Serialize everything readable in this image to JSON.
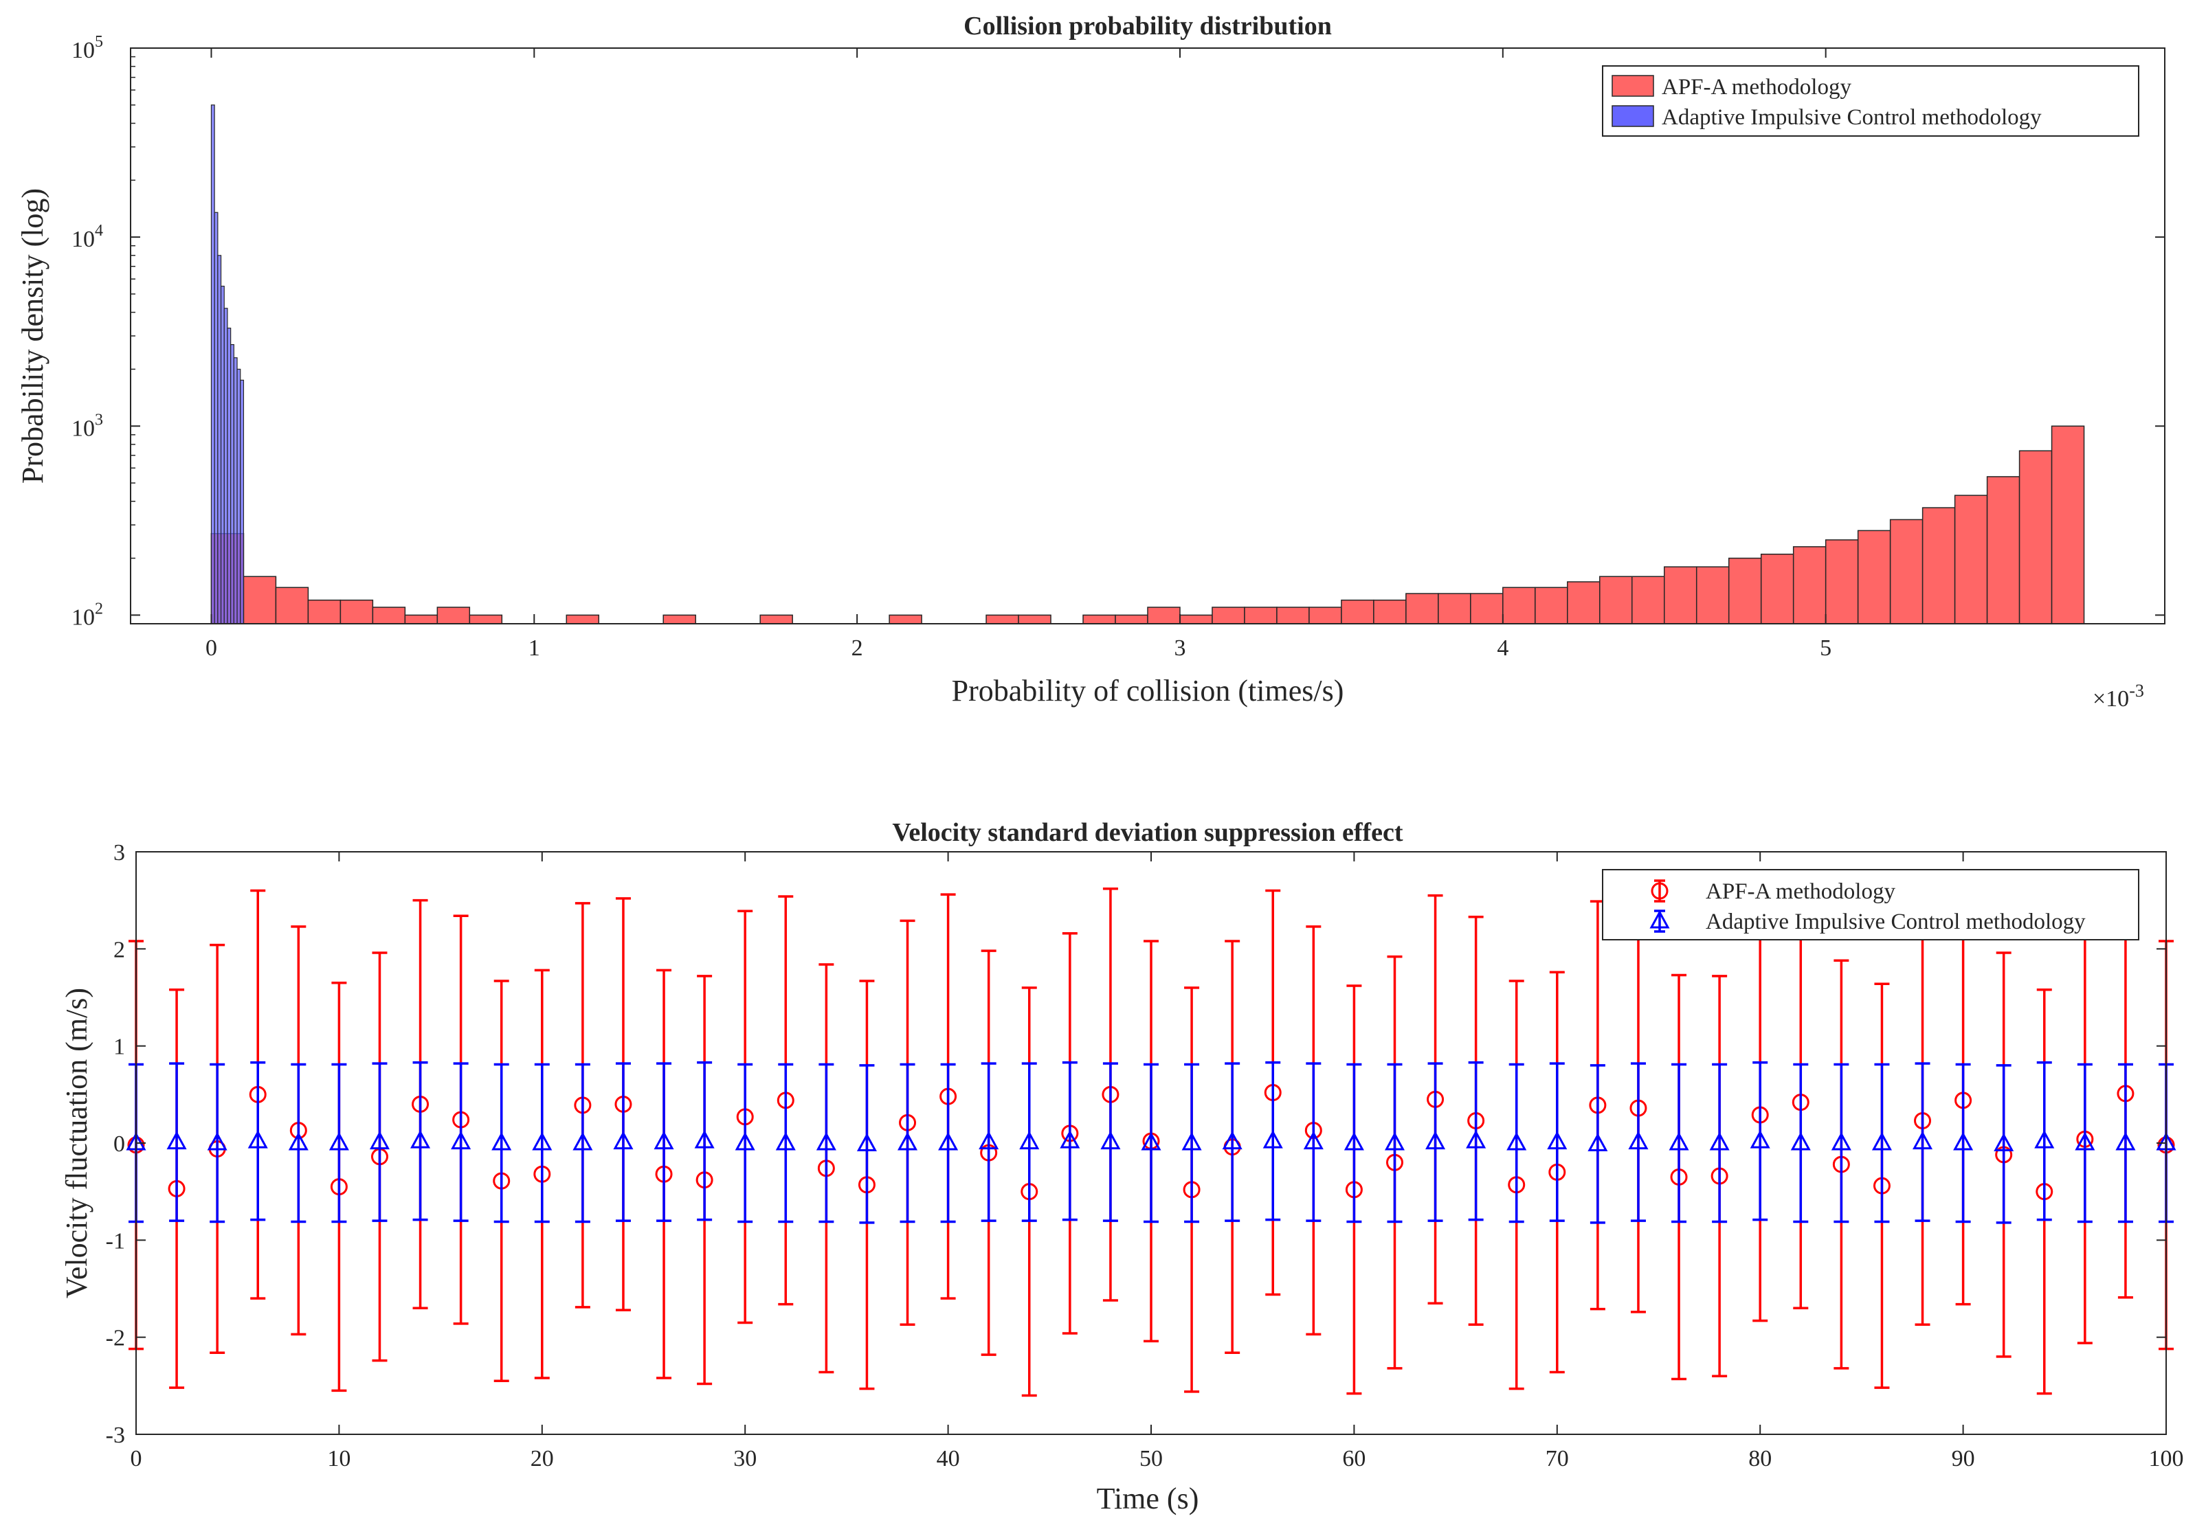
{
  "figure": {
    "charts": [
      {
        "title": "Collision probability distribution",
        "xlabel": "Probability of collision (times/s)",
        "ylabel": "Probability density (log)",
        "x_exponent_label": "×10",
        "x_exponent_value": "-3",
        "y_tick_base": "10",
        "legend": [
          "APF-A methodology",
          "Adaptive Impulsive Control methodology"
        ]
      },
      {
        "title": "Velocity standard deviation suppression effect",
        "xlabel": "Time (s)",
        "ylabel": "Velocity fluctuation (m/s)",
        "legend": [
          "APF-A methodology",
          "Adaptive Impulsive Control methodology"
        ]
      }
    ]
  },
  "chart_data": [
    {
      "type": "bar",
      "title": "Collision probability distribution",
      "xlabel": "Probability of collision (times/s)",
      "ylabel": "Probability density (log)",
      "x_scale_factor": "×10^-3",
      "xlim": [
        -0.00025,
        0.00605
      ],
      "ylim": [
        90,
        100000
      ],
      "yscale": "log",
      "x_ticks": [
        0,
        1,
        2,
        3,
        4,
        5
      ],
      "y_ticks": [
        100,
        1000,
        10000,
        100000
      ],
      "y_tick_exponents": [
        "2",
        "3",
        "4",
        "5"
      ],
      "legend_position": "top-right",
      "grid": false,
      "series": [
        {
          "name": "APF-A methodology",
          "color": "#ff6666",
          "bin_width": 0.0001,
          "bin_start": 0,
          "values": [
            270,
            160,
            140,
            120,
            120,
            110,
            100,
            110,
            100,
            90,
            90,
            100,
            90,
            90,
            100,
            90,
            90,
            100,
            90,
            90,
            90,
            100,
            90,
            90,
            100,
            100,
            90,
            100,
            100,
            110,
            100,
            110,
            110,
            110,
            110,
            120,
            120,
            130,
            130,
            130,
            140,
            140,
            150,
            160,
            160,
            180,
            180,
            200,
            210,
            230,
            250,
            280,
            320,
            370,
            430,
            540,
            740,
            1000
          ]
        },
        {
          "name": "Adaptive Impulsive Control methodology",
          "color": "#6666ff",
          "bin_width": 1e-05,
          "bin_start": 0,
          "values": [
            50000,
            13500,
            8000,
            5500,
            4200,
            3300,
            2700,
            2300,
            2000,
            1750
          ]
        }
      ]
    },
    {
      "type": "scatter",
      "title": "Velocity standard deviation suppression effect",
      "xlabel": "Time (s)",
      "ylabel": "Velocity fluctuation (m/s)",
      "xlim": [
        0,
        100
      ],
      "ylim": [
        -3,
        3
      ],
      "x_ticks": [
        0,
        10,
        20,
        30,
        40,
        50,
        60,
        70,
        80,
        90,
        100
      ],
      "y_ticks": [
        -3,
        -2,
        -1,
        0,
        1,
        2,
        3
      ],
      "legend_position": "top-right",
      "grid": false,
      "x": [
        0,
        2,
        4,
        6,
        8,
        10,
        12,
        14,
        16,
        18,
        20,
        22,
        24,
        26,
        28,
        30,
        32,
        34,
        36,
        38,
        40,
        42,
        44,
        46,
        48,
        50,
        52,
        54,
        56,
        58,
        60,
        62,
        64,
        66,
        68,
        70,
        72,
        74,
        76,
        78,
        80,
        82,
        84,
        86,
        88,
        90,
        92,
        94,
        96,
        98,
        100
      ],
      "series": [
        {
          "name": "APF-A methodology",
          "marker": "circle",
          "color": "#ff0000",
          "values": [
            -0.02,
            -0.47,
            -0.06,
            0.5,
            0.13,
            -0.45,
            -0.14,
            0.4,
            0.24,
            -0.39,
            -0.32,
            0.39,
            0.4,
            -0.32,
            -0.38,
            0.27,
            0.44,
            -0.26,
            -0.43,
            0.21,
            0.48,
            -0.1,
            -0.5,
            0.1,
            0.5,
            0.02,
            -0.48,
            -0.04,
            0.52,
            0.13,
            -0.48,
            -0.2,
            0.45,
            0.23,
            -0.43,
            -0.3,
            0.39,
            0.36,
            -0.35,
            -0.34,
            0.29,
            0.42,
            -0.22,
            -0.44,
            0.23,
            0.44,
            -0.12,
            -0.5,
            0.04,
            0.51,
            -0.02
          ],
          "error": [
            2.1,
            2.05,
            2.1,
            2.1,
            2.1,
            2.1,
            2.1,
            2.1,
            2.1,
            2.06,
            2.1,
            2.08,
            2.12,
            2.1,
            2.1,
            2.12,
            2.1,
            2.1,
            2.1,
            2.08,
            2.08,
            2.08,
            2.1,
            2.06,
            2.12,
            2.06,
            2.08,
            2.12,
            2.08,
            2.1,
            2.1,
            2.12,
            2.1,
            2.1,
            2.1,
            2.06,
            2.1,
            2.1,
            2.08,
            2.06,
            2.12,
            2.12,
            2.1,
            2.08,
            2.1,
            2.1,
            2.08,
            2.08,
            2.1,
            2.1,
            2.1
          ]
        },
        {
          "name": "Adaptive Impulsive Control methodology",
          "marker": "triangle",
          "color": "#0000ff",
          "values": [
            0,
            0.01,
            0,
            0.02,
            0,
            0,
            0.01,
            0.02,
            0.01,
            0,
            0,
            0,
            0.01,
            0.01,
            0.02,
            0,
            0,
            0,
            -0.01,
            0,
            0,
            0.01,
            0.01,
            0.02,
            0.01,
            0,
            0,
            0.01,
            0.02,
            0.01,
            0,
            0,
            0.01,
            0.02,
            0,
            0.01,
            -0.01,
            0.01,
            0,
            0,
            0.02,
            0,
            0,
            0,
            0.01,
            0,
            -0.01,
            0.02,
            0,
            0,
            0
          ],
          "error": [
            0.81,
            0.81,
            0.81,
            0.81,
            0.81,
            0.81,
            0.81,
            0.81,
            0.81,
            0.81,
            0.81,
            0.81,
            0.81,
            0.81,
            0.81,
            0.81,
            0.81,
            0.81,
            0.81,
            0.81,
            0.81,
            0.81,
            0.81,
            0.81,
            0.81,
            0.81,
            0.81,
            0.81,
            0.81,
            0.81,
            0.81,
            0.81,
            0.81,
            0.81,
            0.81,
            0.81,
            0.81,
            0.81,
            0.81,
            0.81,
            0.81,
            0.81,
            0.81,
            0.81,
            0.81,
            0.81,
            0.81,
            0.81,
            0.81,
            0.81,
            0.81
          ]
        }
      ]
    }
  ]
}
